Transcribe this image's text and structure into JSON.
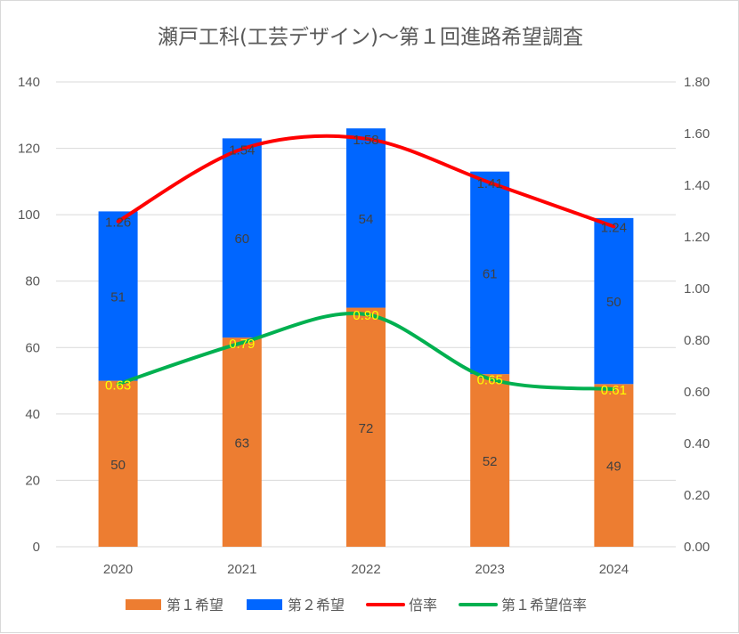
{
  "chart_data": {
    "type": "bar",
    "stacked": true,
    "title": "瀬戸工科(工芸デザイン)～第１回進路希望調査",
    "categories": [
      "2020",
      "2021",
      "2022",
      "2023",
      "2024"
    ],
    "y_left": {
      "min": 0,
      "max": 140,
      "step": 20,
      "ticks": [
        "0",
        "20",
        "40",
        "60",
        "80",
        "100",
        "120",
        "140"
      ]
    },
    "y_right": {
      "min": 0,
      "max": 1.8,
      "step": 0.2,
      "ticks": [
        "0.00",
        "0.20",
        "0.40",
        "0.60",
        "0.80",
        "1.00",
        "1.20",
        "1.40",
        "1.60",
        "1.80"
      ]
    },
    "gridlines": true,
    "legend_position": "bottom",
    "series": [
      {
        "name": "第１希望",
        "type": "bar",
        "axis": "left",
        "color": "#ed7d31",
        "values": [
          50,
          63,
          72,
          52,
          49
        ],
        "labels": [
          "50",
          "63",
          "72",
          "52",
          "49"
        ]
      },
      {
        "name": "第２希望",
        "type": "bar",
        "axis": "left",
        "color": "#0066ff",
        "values": [
          51,
          60,
          54,
          61,
          50
        ],
        "labels": [
          "51",
          "60",
          "54",
          "61",
          "50"
        ]
      },
      {
        "name": "倍率",
        "type": "line",
        "axis": "right",
        "color": "#ff0000",
        "values": [
          1.26,
          1.54,
          1.58,
          1.41,
          1.24
        ],
        "labels": [
          "1.26",
          "1.54",
          "1.58",
          "1.41",
          "1.24"
        ]
      },
      {
        "name": "第１希望倍率",
        "type": "line",
        "axis": "right",
        "color": "#00b050",
        "label_color": "#ffff00",
        "values": [
          0.63,
          0.79,
          0.9,
          0.65,
          0.61
        ],
        "labels": [
          "0.63",
          "0.79",
          "0.90",
          "0.65",
          "0.61"
        ]
      }
    ]
  }
}
